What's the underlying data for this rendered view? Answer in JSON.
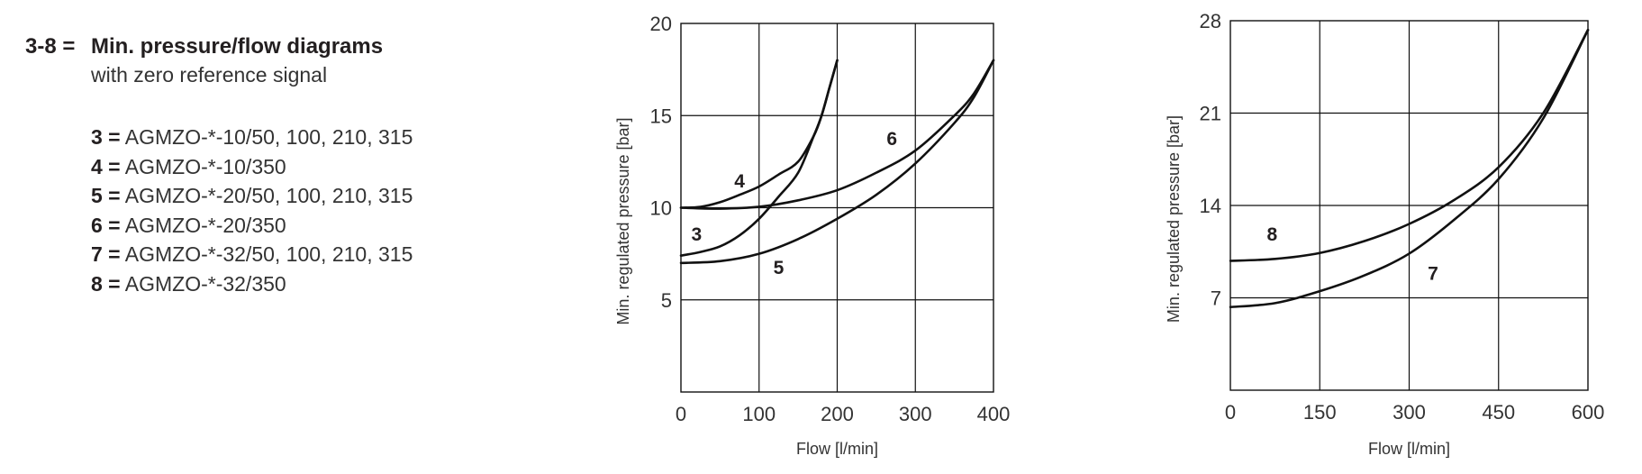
{
  "legend": {
    "number": "3-8 =",
    "title": "Min. pressure/flow diagrams",
    "subtitle": "with zero reference signal",
    "items": [
      {
        "key": "3 =",
        "text": "AGMZO-*-10/50, 100, 210, 315"
      },
      {
        "key": "4 =",
        "text": "AGMZO-*-10/350"
      },
      {
        "key": "5 =",
        "text": "AGMZO-*-20/50, 100, 210, 315"
      },
      {
        "key": "6 =",
        "text": "AGMZO-*-20/350"
      },
      {
        "key": "7 =",
        "text": "AGMZO-*-32/50, 100, 210, 315"
      },
      {
        "key": "8 =",
        "text": "AGMZO-*-32/350"
      }
    ]
  },
  "chart_data": [
    {
      "type": "line",
      "xlabel": "Flow [l/min]",
      "ylabel": "Min. regulated pressure [bar]",
      "xlim": [
        0,
        400
      ],
      "ylim": [
        0,
        20
      ],
      "xticks": [
        0,
        100,
        200,
        300,
        400
      ],
      "yticks": [
        5,
        10,
        15,
        20
      ],
      "grid": true,
      "line_color": "#111111",
      "series": [
        {
          "name": "3",
          "label_at": [
            20,
            8.6
          ],
          "x": [
            0,
            25,
            50,
            75,
            100,
            125,
            150,
            170,
            180,
            190,
            200
          ],
          "y": [
            7.4,
            7.6,
            7.9,
            8.5,
            9.4,
            10.6,
            11.9,
            13.9,
            15.0,
            16.5,
            18.0
          ]
        },
        {
          "name": "4",
          "label_at": [
            75,
            11.5
          ],
          "x": [
            0,
            25,
            50,
            75,
            100,
            125,
            150,
            170,
            180,
            190,
            200
          ],
          "y": [
            10.0,
            10.05,
            10.3,
            10.7,
            11.15,
            11.8,
            12.5,
            13.9,
            15.0,
            16.5,
            18.0
          ]
        },
        {
          "name": "5",
          "label_at": [
            125,
            6.8
          ],
          "x": [
            0,
            50,
            100,
            150,
            200,
            250,
            300,
            350,
            375,
            400
          ],
          "y": [
            7.0,
            7.1,
            7.5,
            8.3,
            9.4,
            10.7,
            12.4,
            14.6,
            16.0,
            18.0
          ]
        },
        {
          "name": "6",
          "label_at": [
            270,
            13.8
          ],
          "x": [
            0,
            50,
            100,
            150,
            200,
            250,
            300,
            350,
            375,
            400
          ],
          "y": [
            10.0,
            9.95,
            10.05,
            10.4,
            10.95,
            11.9,
            13.1,
            15.0,
            16.2,
            18.0
          ]
        }
      ]
    },
    {
      "type": "line",
      "xlabel": "Flow [l/min]",
      "ylabel": "Min. regulated pressure [bar]",
      "xlim": [
        0,
        600
      ],
      "ylim": [
        0,
        28
      ],
      "xticks": [
        0,
        150,
        300,
        450,
        600
      ],
      "yticks": [
        7,
        14,
        21,
        28
      ],
      "grid": true,
      "line_color": "#111111",
      "series": [
        {
          "name": "7",
          "label_at": [
            340,
            8.9
          ],
          "x": [
            0,
            75,
            150,
            225,
            300,
            375,
            450,
            525,
            600
          ],
          "y": [
            6.3,
            6.6,
            7.5,
            8.7,
            10.35,
            12.9,
            16.0,
            20.6,
            27.3
          ]
        },
        {
          "name": "8",
          "label_at": [
            70,
            11.9
          ],
          "x": [
            0,
            75,
            150,
            225,
            300,
            375,
            450,
            525,
            600
          ],
          "y": [
            9.8,
            9.95,
            10.4,
            11.3,
            12.6,
            14.4,
            16.9,
            21.0,
            27.3
          ]
        }
      ]
    }
  ]
}
